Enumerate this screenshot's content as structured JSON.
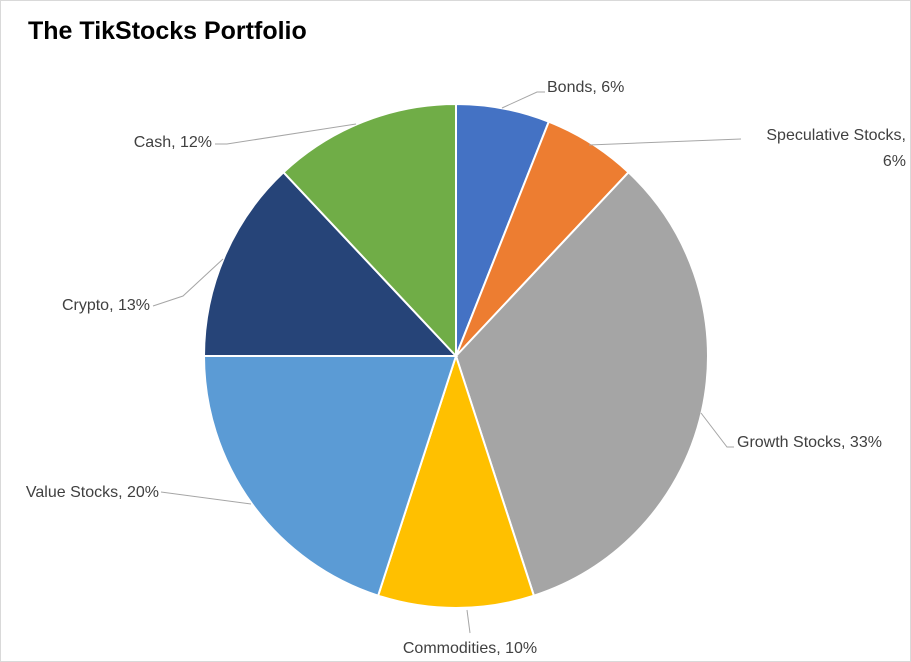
{
  "chart_data": {
    "type": "pie",
    "title": "The TikStocks Portfolio",
    "slices": [
      {
        "label": "Bonds",
        "value": 6,
        "color": "#4472C4",
        "label_lines": [
          "Bonds, 6%"
        ]
      },
      {
        "label": "Speculative Stocks",
        "value": 6,
        "color": "#ED7D31",
        "label_lines": [
          "Speculative Stocks,",
          "6%"
        ]
      },
      {
        "label": "Growth Stocks",
        "value": 33,
        "color": "#A5A5A5",
        "label_lines": [
          "Growth Stocks, 33%"
        ]
      },
      {
        "label": "Commodities",
        "value": 10,
        "color": "#FFC000",
        "label_lines": [
          "Commodities, 10%"
        ]
      },
      {
        "label": "Value Stocks",
        "value": 20,
        "color": "#5B9BD5",
        "label_lines": [
          "Value Stocks, 20%"
        ]
      },
      {
        "label": "Crypto",
        "value": 13,
        "color": "#264478",
        "label_lines": [
          "Crypto, 13%"
        ]
      },
      {
        "label": "Cash",
        "value": 12,
        "color": "#70AD47",
        "label_lines": [
          "Cash, 12%"
        ]
      }
    ],
    "start_angle_deg": 0,
    "direction": "clockwise",
    "legend": "none",
    "data_labels": "outside-with-leader-lines"
  }
}
